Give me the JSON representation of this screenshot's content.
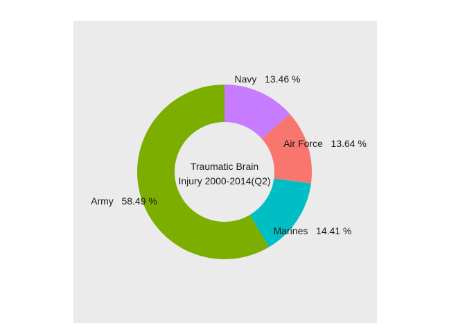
{
  "chart_data": {
    "type": "pie",
    "variant": "donut",
    "center_text": [
      "Traumatic Brain",
      "Injury 2000-2014(Q2)"
    ],
    "categories": [
      "Air Force",
      "Army",
      "Marines",
      "Navy"
    ],
    "values": [
      13.64,
      58.49,
      14.41,
      13.46
    ],
    "labels": [
      "Air Force   13.64 %",
      "Army   58.49 %",
      "Marines   14.41 %",
      "Navy   13.46 %"
    ],
    "colors": [
      "#F8766D",
      "#7CAE00",
      "#00BFC4",
      "#C77CFF"
    ],
    "direction": "clockwise from top, ordered Navy, Air Force, Marines, Army",
    "panel_background": "#EBEBEB",
    "legend": "none",
    "grid": false
  }
}
